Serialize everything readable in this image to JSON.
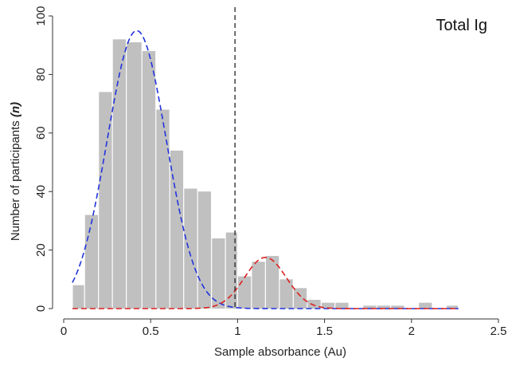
{
  "chart_data": {
    "type": "bar",
    "title": "Total Ig",
    "xlabel": "Sample absorbance (Au)",
    "ylabel_prefix": "Number of participants ",
    "ylabel_italic": "(n)",
    "xlim": [
      0,
      2.5
    ],
    "ylim": [
      0,
      100
    ],
    "x_ticks": [
      0,
      0.5,
      1,
      1.5,
      2,
      2.5
    ],
    "x_tick_labels": [
      "0",
      "0.5",
      "1",
      "1.5",
      "2",
      "2.5"
    ],
    "y_ticks": [
      0,
      20,
      40,
      60,
      80,
      100
    ],
    "y_tick_labels": [
      "0",
      "20",
      "40",
      "60",
      "80",
      "100"
    ],
    "grid": false,
    "bar_color": "#c0c0c0",
    "bins": [
      {
        "x0": 0.05,
        "x1": 0.12,
        "count": 8
      },
      {
        "x0": 0.12,
        "x1": 0.2,
        "count": 32
      },
      {
        "x0": 0.2,
        "x1": 0.28,
        "count": 74
      },
      {
        "x0": 0.28,
        "x1": 0.36,
        "count": 92
      },
      {
        "x0": 0.36,
        "x1": 0.45,
        "count": 91
      },
      {
        "x0": 0.45,
        "x1": 0.53,
        "count": 88
      },
      {
        "x0": 0.53,
        "x1": 0.61,
        "count": 68
      },
      {
        "x0": 0.61,
        "x1": 0.69,
        "count": 54
      },
      {
        "x0": 0.69,
        "x1": 0.77,
        "count": 41
      },
      {
        "x0": 0.77,
        "x1": 0.85,
        "count": 40
      },
      {
        "x0": 0.85,
        "x1": 0.93,
        "count": 24
      },
      {
        "x0": 0.93,
        "x1": 1.0,
        "count": 26
      },
      {
        "x0": 1.0,
        "x1": 1.08,
        "count": 11
      },
      {
        "x0": 1.08,
        "x1": 1.16,
        "count": 16
      },
      {
        "x0": 1.16,
        "x1": 1.24,
        "count": 18
      },
      {
        "x0": 1.24,
        "x1": 1.32,
        "count": 10
      },
      {
        "x0": 1.32,
        "x1": 1.4,
        "count": 7
      },
      {
        "x0": 1.4,
        "x1": 1.48,
        "count": 3
      },
      {
        "x0": 1.48,
        "x1": 1.56,
        "count": 2
      },
      {
        "x0": 1.56,
        "x1": 1.64,
        "count": 2
      },
      {
        "x0": 1.64,
        "x1": 1.72,
        "count": 0
      },
      {
        "x0": 1.72,
        "x1": 1.8,
        "count": 1
      },
      {
        "x0": 1.8,
        "x1": 1.88,
        "count": 1
      },
      {
        "x0": 1.88,
        "x1": 1.96,
        "count": 1
      },
      {
        "x0": 1.96,
        "x1": 2.04,
        "count": 0
      },
      {
        "x0": 2.04,
        "x1": 2.12,
        "count": 2
      },
      {
        "x0": 2.12,
        "x1": 2.2,
        "count": 0
      },
      {
        "x0": 2.2,
        "x1": 2.27,
        "count": 1
      }
    ],
    "series": [
      {
        "style": "dashed",
        "color": "#2233dd",
        "mean": 0.42,
        "sd": 0.17,
        "peak": 95,
        "x_range": [
          0.05,
          2.27
        ]
      },
      {
        "style": "dashed",
        "color": "#dd2222",
        "mean": 1.16,
        "sd": 0.12,
        "peak": 17.5,
        "x_range": [
          0.05,
          2.27
        ]
      }
    ],
    "reference_line": {
      "x": 0.985,
      "style": "dashed",
      "color": "#222222"
    }
  }
}
